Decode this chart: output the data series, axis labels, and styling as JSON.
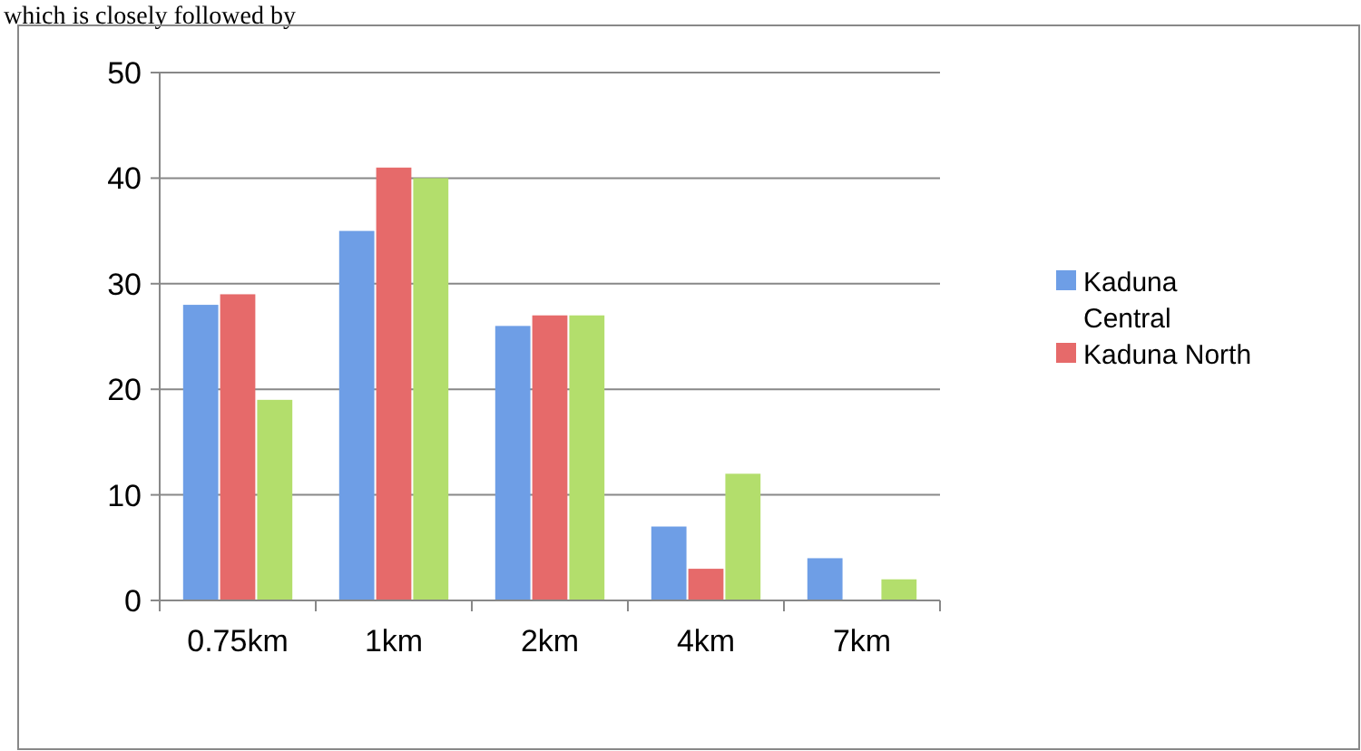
{
  "chart_data": {
    "type": "bar",
    "annotations": [
      "which is closely followed by"
    ],
    "categories": [
      "0.75km",
      "1km",
      "2km",
      "4km",
      "7km"
    ],
    "series": [
      {
        "name": "Kaduna Central",
        "color": "#6e9ee6",
        "values": [
          28,
          35,
          26,
          7,
          4
        ]
      },
      {
        "name": "Kaduna North",
        "color": "#e66a6a",
        "values": [
          29,
          41,
          27,
          3,
          0
        ]
      },
      {
        "color": "#b3de6c",
        "values": [
          19,
          40,
          27,
          12,
          2
        ]
      }
    ],
    "ylim": [
      0,
      50
    ],
    "yticks": [
      0,
      10,
      20,
      30,
      40,
      50
    ],
    "grid": "y",
    "legend": "right"
  }
}
